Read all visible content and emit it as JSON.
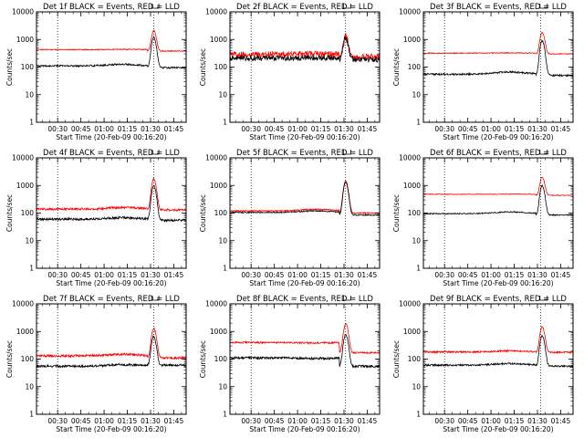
{
  "common": {
    "y_tick_labels": [
      "1",
      "10",
      "100",
      "1000",
      "10000"
    ],
    "y_tick_values": [
      1,
      10,
      100,
      1000,
      10000
    ],
    "x_tick_labels": [
      "00:30",
      "00:45",
      "01:00",
      "01:15",
      "01:30",
      "01:45"
    ],
    "x_tick_minutes": [
      30,
      45,
      60,
      75,
      90,
      105
    ],
    "ylabel": "Counts/sec",
    "xlabel": "Start Time (20-Feb-09 00:16:20)",
    "colors": {
      "events": "#000000",
      "lld": "#ff0000",
      "axes": "#000000"
    }
  },
  "chart_data": [
    {
      "type": "line",
      "title": "Det 1f BLACK = Events, RED = LLD",
      "x": {
        "unit": "UT time",
        "range": [
          "00:16:20",
          "01:53"
        ]
      },
      "ylim": [
        1,
        10000
      ],
      "yscale": "log",
      "dotted_vlines": [
        "00:30",
        "01:32"
      ],
      "marker_bracket": "01:33",
      "series": [
        {
          "name": "Events",
          "color": "#000000",
          "baseline": 110,
          "bump": 0.14,
          "peak_time": "01:32",
          "peak": 1200,
          "post": 95,
          "noise": 0.03
        },
        {
          "name": "LLD",
          "color": "#ff0000",
          "baseline": 430,
          "bump": 0.02,
          "peak_time": "01:32",
          "peak": 2100,
          "post": 380,
          "noise": 0.015
        }
      ]
    },
    {
      "type": "line",
      "title": "Det 2f BLACK = Events, RED = LLD",
      "x": {
        "unit": "UT time",
        "range": [
          "00:16:20",
          "01:53"
        ]
      },
      "ylim": [
        1,
        10000
      ],
      "yscale": "log",
      "dotted_vlines": [
        "00:30",
        "01:31"
      ],
      "marker_bracket": "01:32",
      "series": [
        {
          "name": "Events",
          "color": "#000000",
          "baseline": 210,
          "bump": 0.05,
          "peak_time": "01:31",
          "peak": 1150,
          "post": 190,
          "noise": 0.1
        },
        {
          "name": "LLD",
          "color": "#ff0000",
          "baseline": 290,
          "bump": 0.05,
          "peak_time": "01:31",
          "peak": 1400,
          "post": 240,
          "noise": 0.1
        }
      ]
    },
    {
      "type": "line",
      "title": "Det 3f BLACK = Events, RED = LLD",
      "x": {
        "unit": "UT time",
        "range": [
          "00:16:20",
          "01:53"
        ]
      },
      "ylim": [
        1,
        10000
      ],
      "yscale": "log",
      "dotted_vlines": [
        "00:30",
        "01:32"
      ],
      "marker_bracket": "01:34",
      "series": [
        {
          "name": "Events",
          "color": "#000000",
          "baseline": 55,
          "bump": 0.2,
          "peak_time": "01:33",
          "peak": 900,
          "post": 50,
          "noise": 0.03
        },
        {
          "name": "LLD",
          "color": "#ff0000",
          "baseline": 320,
          "bump": 0.02,
          "peak_time": "01:33",
          "peak": 1800,
          "post": 300,
          "noise": 0.015
        }
      ]
    },
    {
      "type": "line",
      "title": "Det 4f BLACK = Events, RED = LLD",
      "x": {
        "unit": "UT time",
        "range": [
          "00:16:20",
          "01:53"
        ]
      },
      "ylim": [
        1,
        10000
      ],
      "yscale": "log",
      "dotted_vlines": [
        "00:30",
        "01:32"
      ],
      "marker_bracket": "01:33",
      "series": [
        {
          "name": "Events",
          "color": "#000000",
          "baseline": 60,
          "bump": 0.12,
          "peak_time": "01:32",
          "peak": 950,
          "post": 55,
          "noise": 0.04
        },
        {
          "name": "LLD",
          "color": "#ff0000",
          "baseline": 140,
          "bump": 0.13,
          "peak_time": "01:32",
          "peak": 1700,
          "post": 130,
          "noise": 0.04
        }
      ]
    },
    {
      "type": "line",
      "title": "Det 5f BLACK = Events, RED = LLD",
      "x": {
        "unit": "UT time",
        "range": [
          "00:16:20",
          "01:53"
        ]
      },
      "ylim": [
        1,
        10000
      ],
      "yscale": "log",
      "dotted_vlines": [
        "00:30",
        "01:31"
      ],
      "marker_bracket": "01:32",
      "series": [
        {
          "name": "Events",
          "color": "#000000",
          "baseline": 105,
          "bump": 0.14,
          "peak_time": "01:31",
          "peak": 1300,
          "post": 85,
          "noise": 0.02
        },
        {
          "name": "LLD",
          "color": "#ff0000",
          "baseline": 120,
          "bump": 0.14,
          "peak_time": "01:31",
          "peak": 1450,
          "post": 100,
          "noise": 0.02
        }
      ]
    },
    {
      "type": "line",
      "title": "Det 6f BLACK = Events, RED = LLD",
      "x": {
        "unit": "UT time",
        "range": [
          "00:16:20",
          "01:53"
        ]
      },
      "ylim": [
        1,
        10000
      ],
      "yscale": "log",
      "dotted_vlines": [
        "00:30",
        "01:32"
      ],
      "marker_bracket": "01:34",
      "series": [
        {
          "name": "Events",
          "color": "#000000",
          "baseline": 95,
          "bump": 0.15,
          "peak_time": "01:33",
          "peak": 1000,
          "post": 85,
          "noise": 0.02
        },
        {
          "name": "LLD",
          "color": "#ff0000",
          "baseline": 480,
          "bump": 0.01,
          "peak_time": "01:33",
          "peak": 2000,
          "post": 440,
          "noise": 0.012
        }
      ]
    },
    {
      "type": "line",
      "title": "Det 7f BLACK = Events, RED = LLD",
      "x": {
        "unit": "UT time",
        "range": [
          "00:16:20",
          "01:53"
        ]
      },
      "ylim": [
        1,
        10000
      ],
      "yscale": "log",
      "dotted_vlines": [
        "00:30",
        "01:32"
      ],
      "marker_bracket": "01:33",
      "series": [
        {
          "name": "Events",
          "color": "#000000",
          "baseline": 55,
          "bump": 0.14,
          "peak_time": "01:32",
          "peak": 650,
          "post": 60,
          "noise": 0.04
        },
        {
          "name": "LLD",
          "color": "#ff0000",
          "baseline": 130,
          "bump": 0.14,
          "peak_time": "01:32",
          "peak": 1300,
          "post": 110,
          "noise": 0.04
        }
      ]
    },
    {
      "type": "line",
      "title": "Det 8f BLACK = Events, RED = LLD",
      "x": {
        "unit": "UT time",
        "range": [
          "00:16:20",
          "01:53"
        ]
      },
      "ylim": [
        1,
        10000
      ],
      "yscale": "log",
      "dotted_vlines": [
        "00:30",
        "01:31"
      ],
      "marker_bracket": "01:32",
      "series": [
        {
          "name": "Events",
          "color": "#000000",
          "baseline": 110,
          "bump": -0.05,
          "peak_time": "01:31",
          "peak": 800,
          "post": 55,
          "noise": 0.04
        },
        {
          "name": "LLD",
          "color": "#ff0000",
          "baseline": 400,
          "bump": -0.04,
          "peak_time": "01:31",
          "peak": 2000,
          "post": 170,
          "noise": 0.03
        }
      ]
    },
    {
      "type": "line",
      "title": "Det 9f BLACK = Events, RED = LLD",
      "x": {
        "unit": "UT time",
        "range": [
          "00:16:20",
          "01:53"
        ]
      },
      "ylim": [
        1,
        10000
      ],
      "yscale": "log",
      "dotted_vlines": [
        "00:30",
        "01:32"
      ],
      "marker_bracket": "01:34",
      "series": [
        {
          "name": "Events",
          "color": "#000000",
          "baseline": 60,
          "bump": 0.14,
          "peak_time": "01:33",
          "peak": 700,
          "post": 55,
          "noise": 0.03
        },
        {
          "name": "LLD",
          "color": "#ff0000",
          "baseline": 180,
          "bump": 0.1,
          "peak_time": "01:33",
          "peak": 1500,
          "post": 175,
          "noise": 0.03
        }
      ]
    }
  ]
}
